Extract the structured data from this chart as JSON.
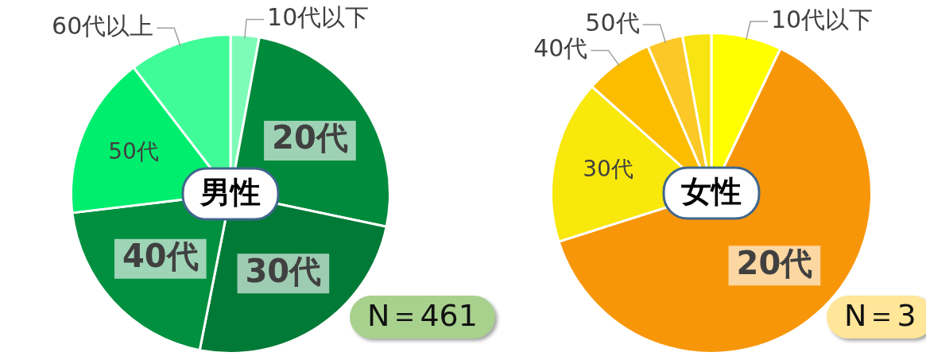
{
  "chart_data": [
    {
      "type": "pie",
      "title": "男性",
      "categories": [
        "10代以下",
        "20代",
        "30代",
        "40代",
        "50代",
        "60代以上"
      ],
      "values": [
        2.9,
        25.4,
        24.8,
        20.0,
        16.5,
        10.4
      ],
      "colors": [
        "#7dfcb8",
        "#008a3c",
        "#007a36",
        "#00903f",
        "#00ee6e",
        "#40fc98"
      ],
      "annotations": [
        "N＝461"
      ]
    },
    {
      "type": "pie",
      "title": "女性",
      "categories": [
        "10代以下",
        "20代",
        "30代",
        "40代",
        "50代",
        null
      ],
      "values": [
        7.1,
        63.0,
        16.5,
        6.9,
        3.6,
        2.9
      ],
      "colors": [
        "#ffff00",
        "#f8960a",
        "#f8e80c",
        "#fcbc00",
        "#fcc828",
        "#f8e410"
      ],
      "annotations": [
        "N＝3"
      ]
    }
  ]
}
